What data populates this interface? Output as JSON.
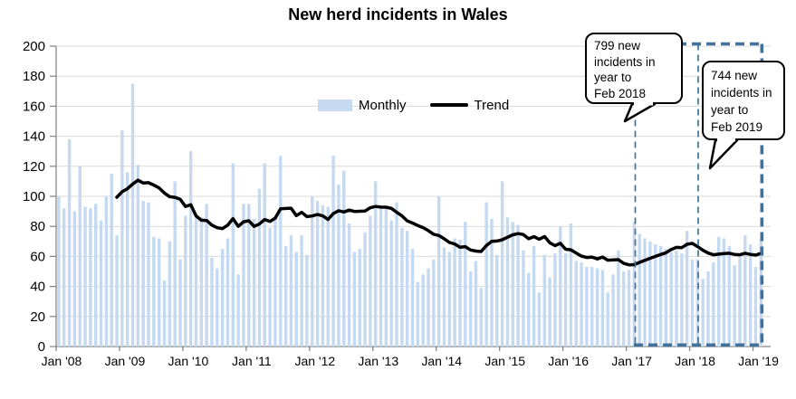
{
  "title": "New herd incidents in Wales",
  "legend": {
    "monthly_label": "Monthly",
    "trend_label": "Trend"
  },
  "callouts": {
    "feb2018": {
      "text": "799 new\nincidents in\nyear to\nFeb 2018"
    },
    "feb2019": {
      "text": "744 new\nincidents in\nyear to\nFeb 2019"
    }
  },
  "colors": {
    "bar": "#C5D9F1",
    "trend": "#000000",
    "dashed_box": "#41719C",
    "gridline": "#D9D9D9",
    "axis": "#808080",
    "text": "#000000"
  },
  "chart_data": {
    "type": "bar",
    "title": "New herd incidents in Wales",
    "xlabel": "",
    "ylabel": "",
    "ylim": [
      0,
      200
    ],
    "y_ticks": [
      0,
      20,
      40,
      60,
      80,
      100,
      120,
      140,
      160,
      180,
      200
    ],
    "x_tick_labels": [
      "Jan '08",
      "Jan '09",
      "Jan '10",
      "Jan '11",
      "Jan '12",
      "Jan '13",
      "Jan '14",
      "Jan '15",
      "Jan '16",
      "Jan '17",
      "Jan '18",
      "Jan '19"
    ],
    "x_start": "Jan 2008",
    "x_end": "Feb 2019",
    "grid": "horizontal",
    "legend_position": "inside-top",
    "series": [
      {
        "name": "Monthly",
        "type": "bar"
      },
      {
        "name": "Trend",
        "type": "line",
        "derivation": "trailing-12-month-average"
      }
    ],
    "monthly_by_year": {
      "2008": [
        100,
        92,
        138,
        90,
        120,
        93,
        92,
        95,
        84,
        100,
        115,
        74
      ],
      "2009": [
        144,
        116,
        175,
        121,
        97,
        96,
        73,
        72,
        44,
        70,
        110,
        58
      ],
      "2010": [
        87,
        130,
        86,
        86,
        95,
        59,
        52,
        65,
        72,
        122,
        48,
        95
      ],
      "2011": [
        95,
        85,
        105,
        122,
        79,
        86,
        127,
        67,
        74,
        63,
        74,
        61
      ],
      "2012": [
        100,
        97,
        94,
        93,
        127,
        108,
        117,
        82,
        63,
        65,
        76,
        87
      ],
      "2013": [
        110,
        92,
        93,
        84,
        96,
        79,
        77,
        65,
        43,
        48,
        52,
        58
      ],
      "2014": [
        100,
        66,
        63,
        72,
        71,
        83,
        50,
        57,
        39,
        96,
        85,
        61
      ],
      "2015": [
        110,
        86,
        83,
        81,
        64,
        49,
        67,
        36,
        61,
        46,
        62,
        80
      ],
      "2016": [
        62,
        82,
        57,
        56,
        53,
        53,
        52,
        51,
        36,
        48,
        64,
        50
      ],
      "2017": [
        51,
        83,
        75,
        72,
        70,
        68,
        67,
        65,
        63,
        64,
        62,
        77
      ],
      "2018": [
        58,
        58,
        45,
        50,
        56,
        73,
        72,
        67,
        54,
        61,
        74,
        68
      ],
      "2019": [
        53,
        71
      ]
    },
    "annotations": {
      "year_to_feb_2018_total": 799,
      "year_to_feb_2019_total": 744,
      "highlight_windows": [
        {
          "label": "Mar 2017 - Feb 2018",
          "style": "thin-dashed-box"
        },
        {
          "label": "Mar 2018 - Feb 2019",
          "style": "thick-dashed-box"
        }
      ]
    }
  }
}
